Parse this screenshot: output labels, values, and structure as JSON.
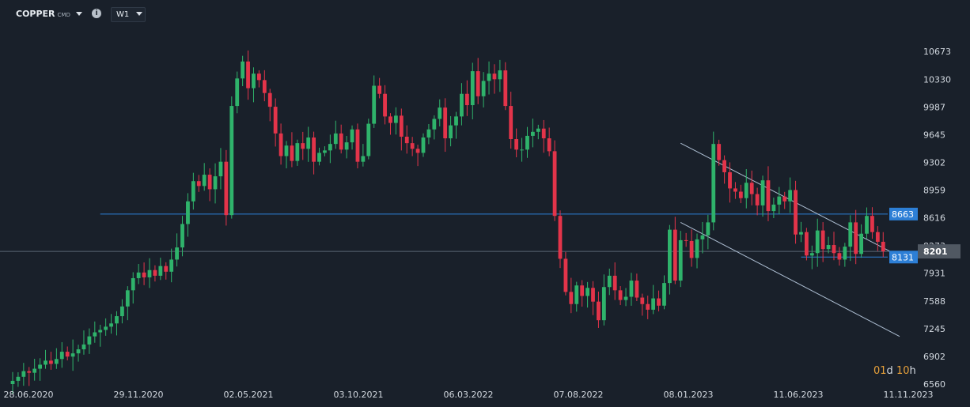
{
  "toolbar": {
    "symbol": "COPPER",
    "symbol_suffix": "CMD",
    "timeframe": "W1",
    "info_icon": "info-icon"
  },
  "countdown": {
    "days": "01",
    "d": "d",
    "hours": "10",
    "h": "h"
  },
  "colors": {
    "up": "#2fb36b",
    "down": "#e3344a",
    "hline": "#2d7fd6",
    "channel": "#aebfd3",
    "bg": "#19202a"
  },
  "chart_data": {
    "type": "candlestick",
    "ylim": [
      6560,
      10900
    ],
    "y_ticks": [
      "10673",
      "10330",
      "9987",
      "9645",
      "9302",
      "8959",
      "8616",
      "8273",
      "7931",
      "7588",
      "7245",
      "6902",
      "6560"
    ],
    "x_ticks": [
      "28.06.2020",
      "29.11.2020",
      "02.05.2021",
      "03.10.2021",
      "06.03.2022",
      "07.08.2022",
      "08.01.2023",
      "11.06.2023",
      "11.11.2023"
    ],
    "price_labels": [
      {
        "label": "8663",
        "value": 8663,
        "style": "blue"
      },
      {
        "label": "8131",
        "value": 8131,
        "style": "blue"
      },
      {
        "label": "8201",
        "value": 8201,
        "style": "grey"
      }
    ],
    "horizontal_lines": [
      {
        "value": 8663,
        "from_index": 16,
        "color": "blue"
      },
      {
        "value": 8201,
        "from_index": 0,
        "color": "grey"
      },
      {
        "value": 8131,
        "from_index": 144,
        "color": "blue"
      }
    ],
    "channel": {
      "upper": {
        "from": [
          122,
          9540
        ],
        "to": [
          162,
          8140
        ]
      },
      "lower": {
        "from": [
          122,
          8560
        ],
        "to": [
          162,
          7150
        ]
      }
    },
    "series": [
      {
        "name": "COPPER",
        "ohlc": []
      }
    ],
    "closes": [
      6600,
      6650,
      6720,
      6700,
      6750,
      6800,
      6850,
      6810,
      6870,
      6960,
      6900,
      6940,
      6990,
      7050,
      7150,
      7200,
      7230,
      7270,
      7310,
      7400,
      7520,
      7720,
      7870,
      7940,
      7880,
      7970,
      7900,
      8020,
      7950,
      8100,
      8250,
      8540,
      8820,
      9070,
      9010,
      9150,
      8970,
      9130,
      9310,
      8650,
      10000,
      10340,
      10550,
      10220,
      10400,
      10320,
      10160,
      9990,
      9660,
      9380,
      9510,
      9320,
      9540,
      9470,
      9610,
      9310,
      9420,
      9450,
      9530,
      9660,
      9460,
      9550,
      9710,
      9310,
      9380,
      9780,
      10250,
      10150,
      9870,
      9790,
      9880,
      9620,
      9540,
      9470,
      9420,
      9610,
      9710,
      9840,
      9980,
      9600,
      9760,
      9870,
      10150,
      10010,
      10430,
      10120,
      10310,
      10400,
      10330,
      10440,
      10000,
      9590,
      9460,
      9460,
      9630,
      9680,
      9720,
      9600,
      9440,
      8640,
      8110,
      7700,
      7550,
      7780,
      7650,
      7750,
      7580,
      7350,
      7760,
      7900,
      7720,
      7600,
      7640,
      7840,
      7630,
      7550,
      7480,
      7620,
      7530,
      7810,
      8470,
      7840,
      8340,
      8330,
      8120,
      8350,
      8400,
      8560,
      9530,
      9330,
      9180,
      8980,
      8940,
      8860,
      9050,
      8910,
      8770,
      9080,
      8700,
      8780,
      8880,
      8820,
      8960,
      8410,
      8440,
      8150,
      8180,
      8460,
      8230,
      8280,
      8180,
      8100,
      8260,
      8560,
      8170,
      8420,
      8640,
      8440,
      8320,
      8201
    ]
  }
}
